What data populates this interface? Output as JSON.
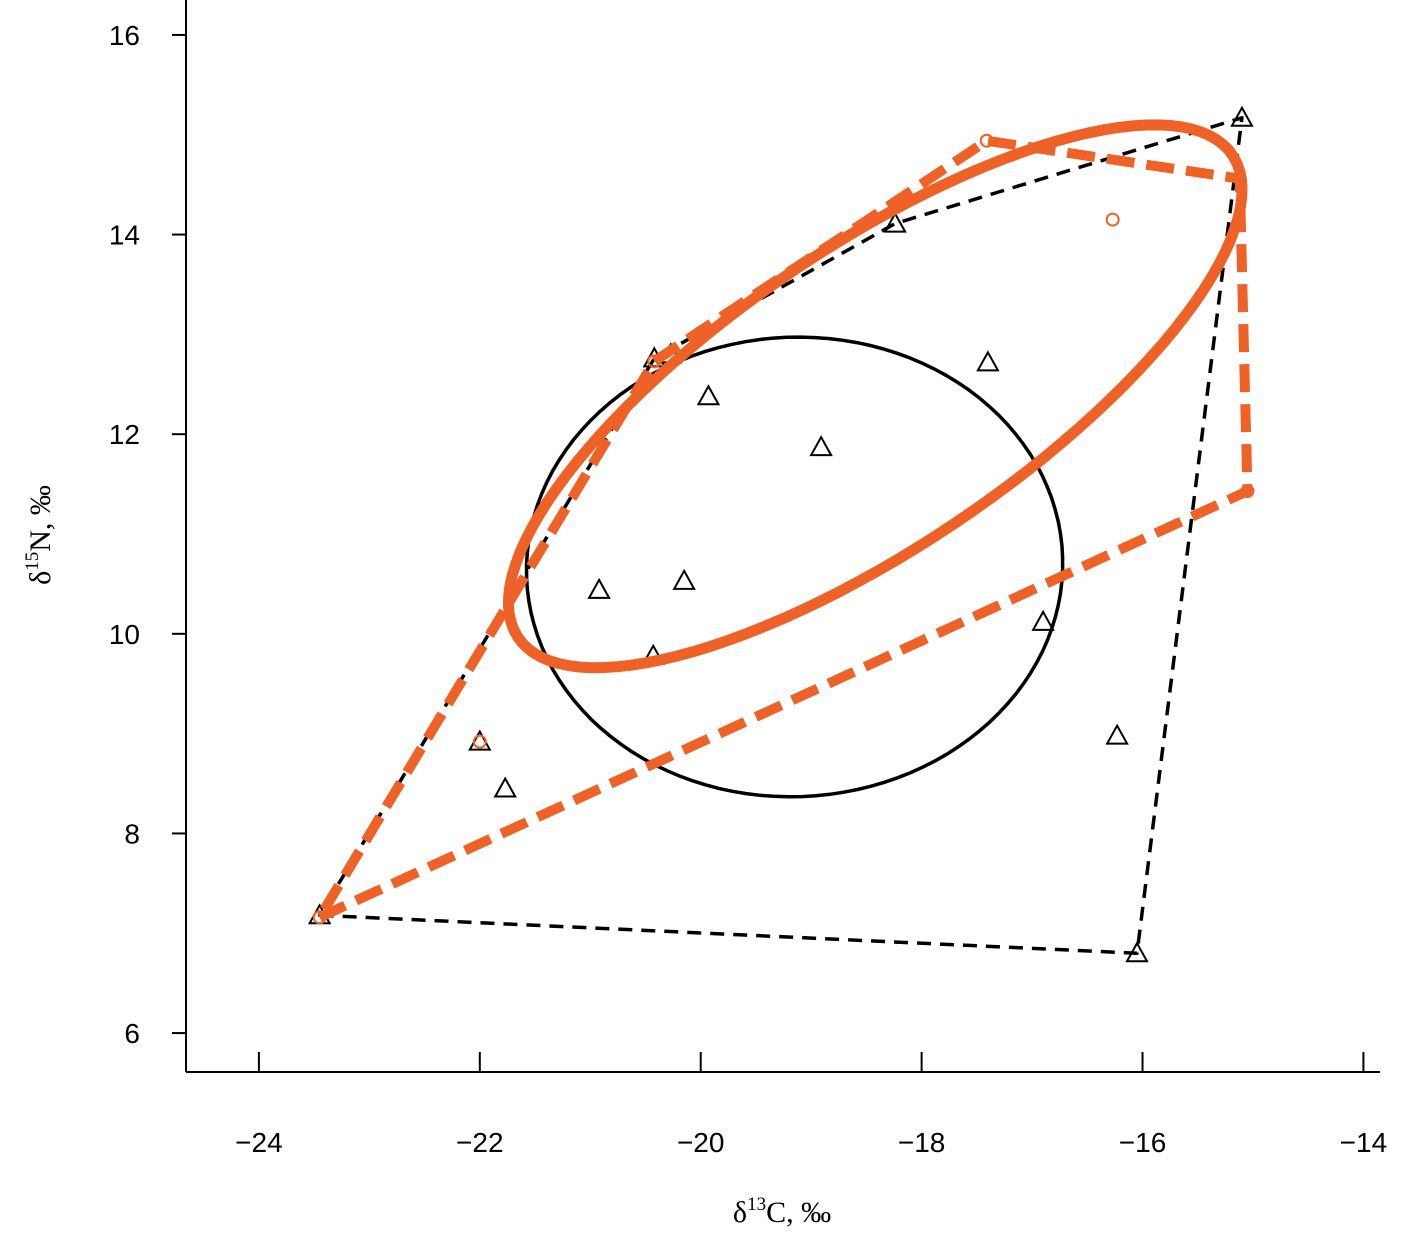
{
  "chart_data": {
    "type": "scatter",
    "xlabel": {
      "symbol": "δ",
      "sup": "13",
      "text": "C, ‰"
    },
    "ylabel": {
      "symbol": "δ",
      "sup": "15",
      "text": "N, ‰"
    },
    "xlim": [
      -24.66,
      -13.85
    ],
    "ylim": [
      5.61,
      16.35
    ],
    "xticks": [
      {
        "value": -24,
        "label": "−24"
      },
      {
        "value": -22,
        "label": "−22"
      },
      {
        "value": -20,
        "label": "−20"
      },
      {
        "value": -18,
        "label": "−18"
      },
      {
        "value": -16,
        "label": "−16"
      },
      {
        "value": -14,
        "label": "−14"
      }
    ],
    "yticks": [
      6,
      8,
      10,
      12,
      14,
      16
    ],
    "series": [
      {
        "color": "#000000",
        "marker": "triangle",
        "hull_width": 3.5,
        "ellipse_width": 3.5,
        "x": [
          -15.1,
          -18.24,
          -20.42,
          -20.27,
          -19.93,
          -17.4,
          -18.91,
          -20.92,
          -20.15,
          -20.43,
          -16.9,
          -22.0,
          -21.77,
          -16.23,
          -23.45,
          -16.05
        ],
        "y": [
          15.17,
          14.11,
          12.76,
          12.8,
          12.38,
          12.72,
          11.87,
          10.44,
          10.53,
          9.78,
          10.12,
          8.92,
          8.45,
          8.98,
          7.18,
          6.8
        ],
        "ellipse": {
          "cx": -19.15,
          "cy": 10.67,
          "rx": 2.43,
          "ry": 2.3,
          "angle": 8
        }
      },
      {
        "color": "#ee6227",
        "marker": "circle",
        "hull_width": 10,
        "ellipse_width": 11,
        "x": [
          -23.45,
          -22.0,
          -20.42,
          -17.41,
          -16.27,
          -15.12,
          -15.05
        ],
        "y": [
          7.16,
          8.92,
          12.73,
          14.94,
          14.15,
          14.56,
          11.43
        ],
        "ellipse": {
          "cx": -18.42,
          "cy": 12.38,
          "rx": 4.04,
          "ry": 1.45,
          "angle": 37.6
        }
      }
    ]
  }
}
